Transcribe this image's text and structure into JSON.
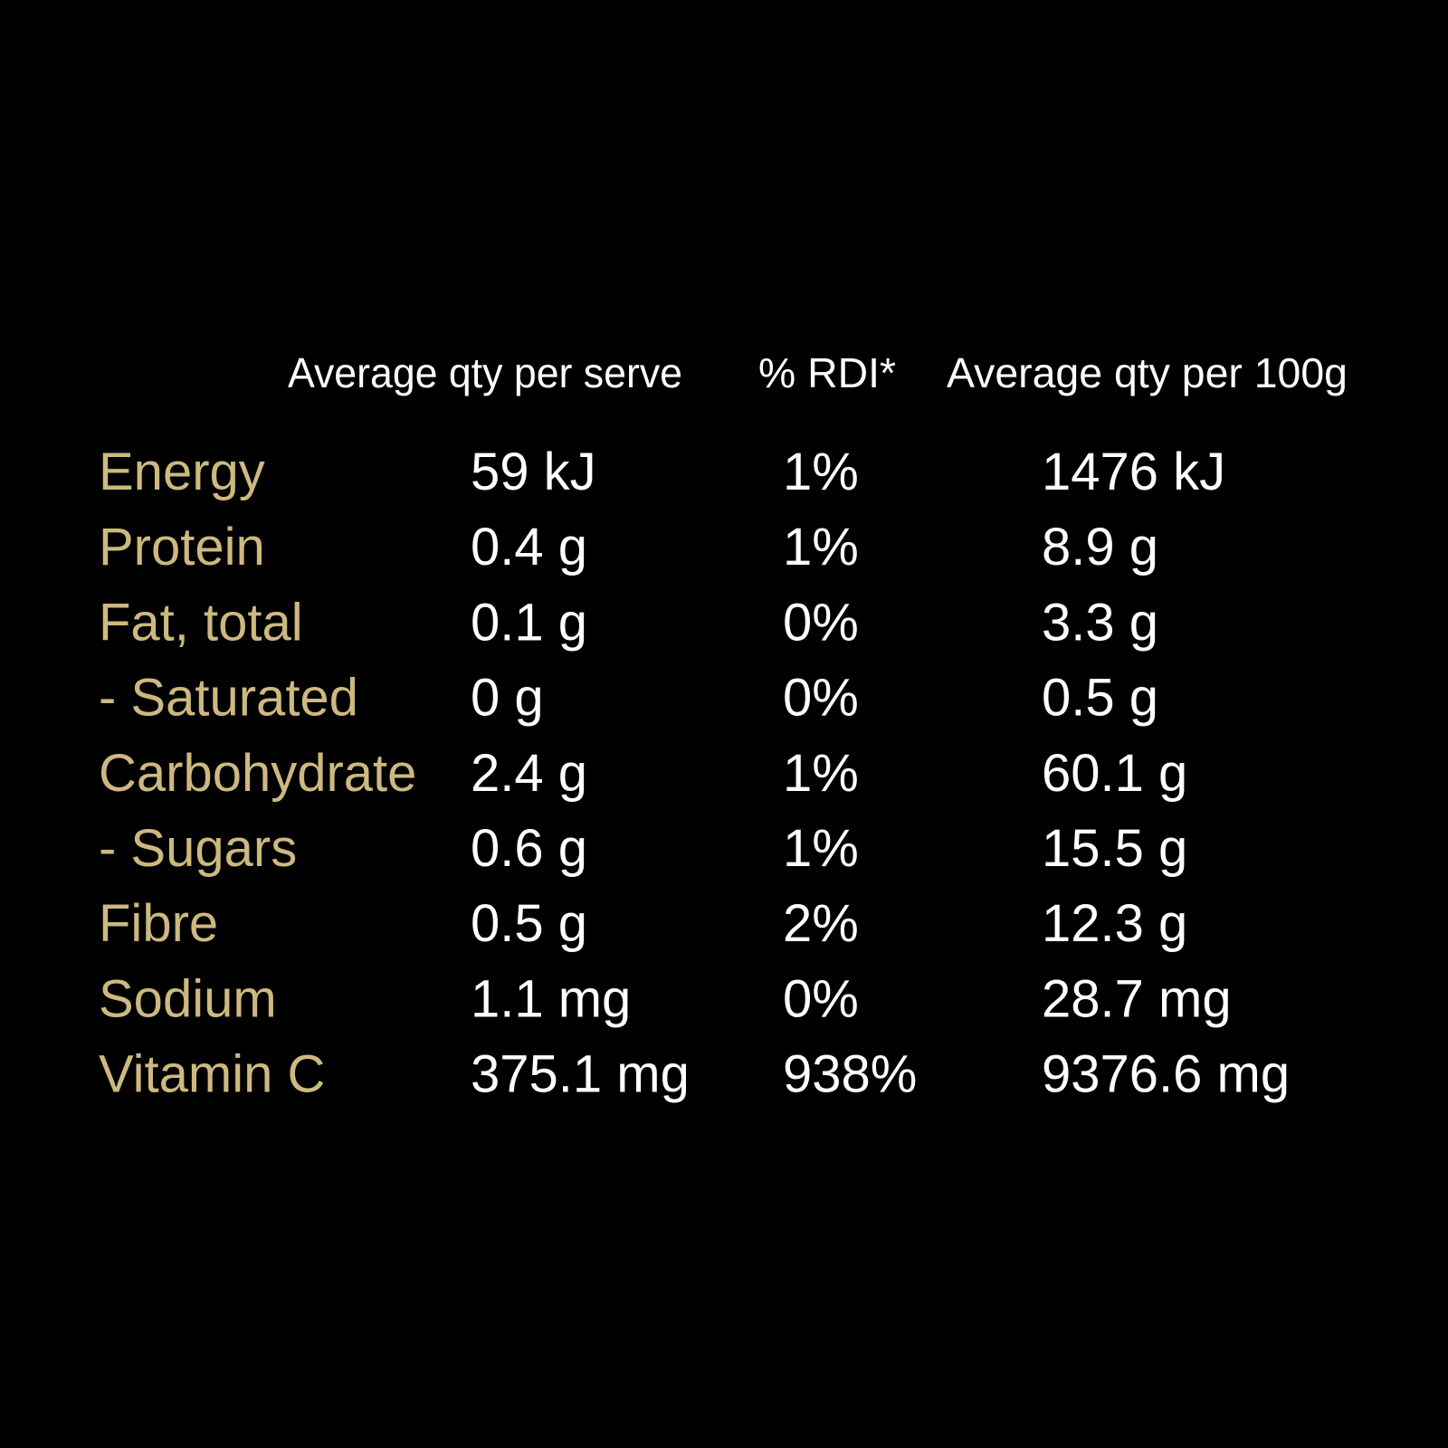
{
  "table": {
    "headers": [
      "Average qty per serve",
      "% RDI*",
      "Average qty per 100g"
    ],
    "rows": [
      [
        "Energy",
        "59 kJ",
        "1%",
        "1476 kJ"
      ],
      [
        "Protein",
        "0.4 g",
        "1%",
        "8.9 g"
      ],
      [
        "Fat, total",
        "0.1 g",
        "0%",
        "3.3 g"
      ],
      [
        "- Saturated",
        "0 g",
        "0%",
        "0.5 g"
      ],
      [
        "Carbohydrate",
        "2.4 g",
        "1%",
        "60.1 g"
      ],
      [
        "- Sugars",
        "0.6 g",
        "1%",
        "15.5 g"
      ],
      [
        "Fibre",
        "0.5 g",
        "2%",
        "12.3 g"
      ],
      [
        "Sodium",
        "1.1 mg",
        "0%",
        "28.7 mg"
      ],
      [
        "Vitamin C",
        "375.1 mg",
        "938%",
        "9376.6 mg"
      ]
    ]
  }
}
